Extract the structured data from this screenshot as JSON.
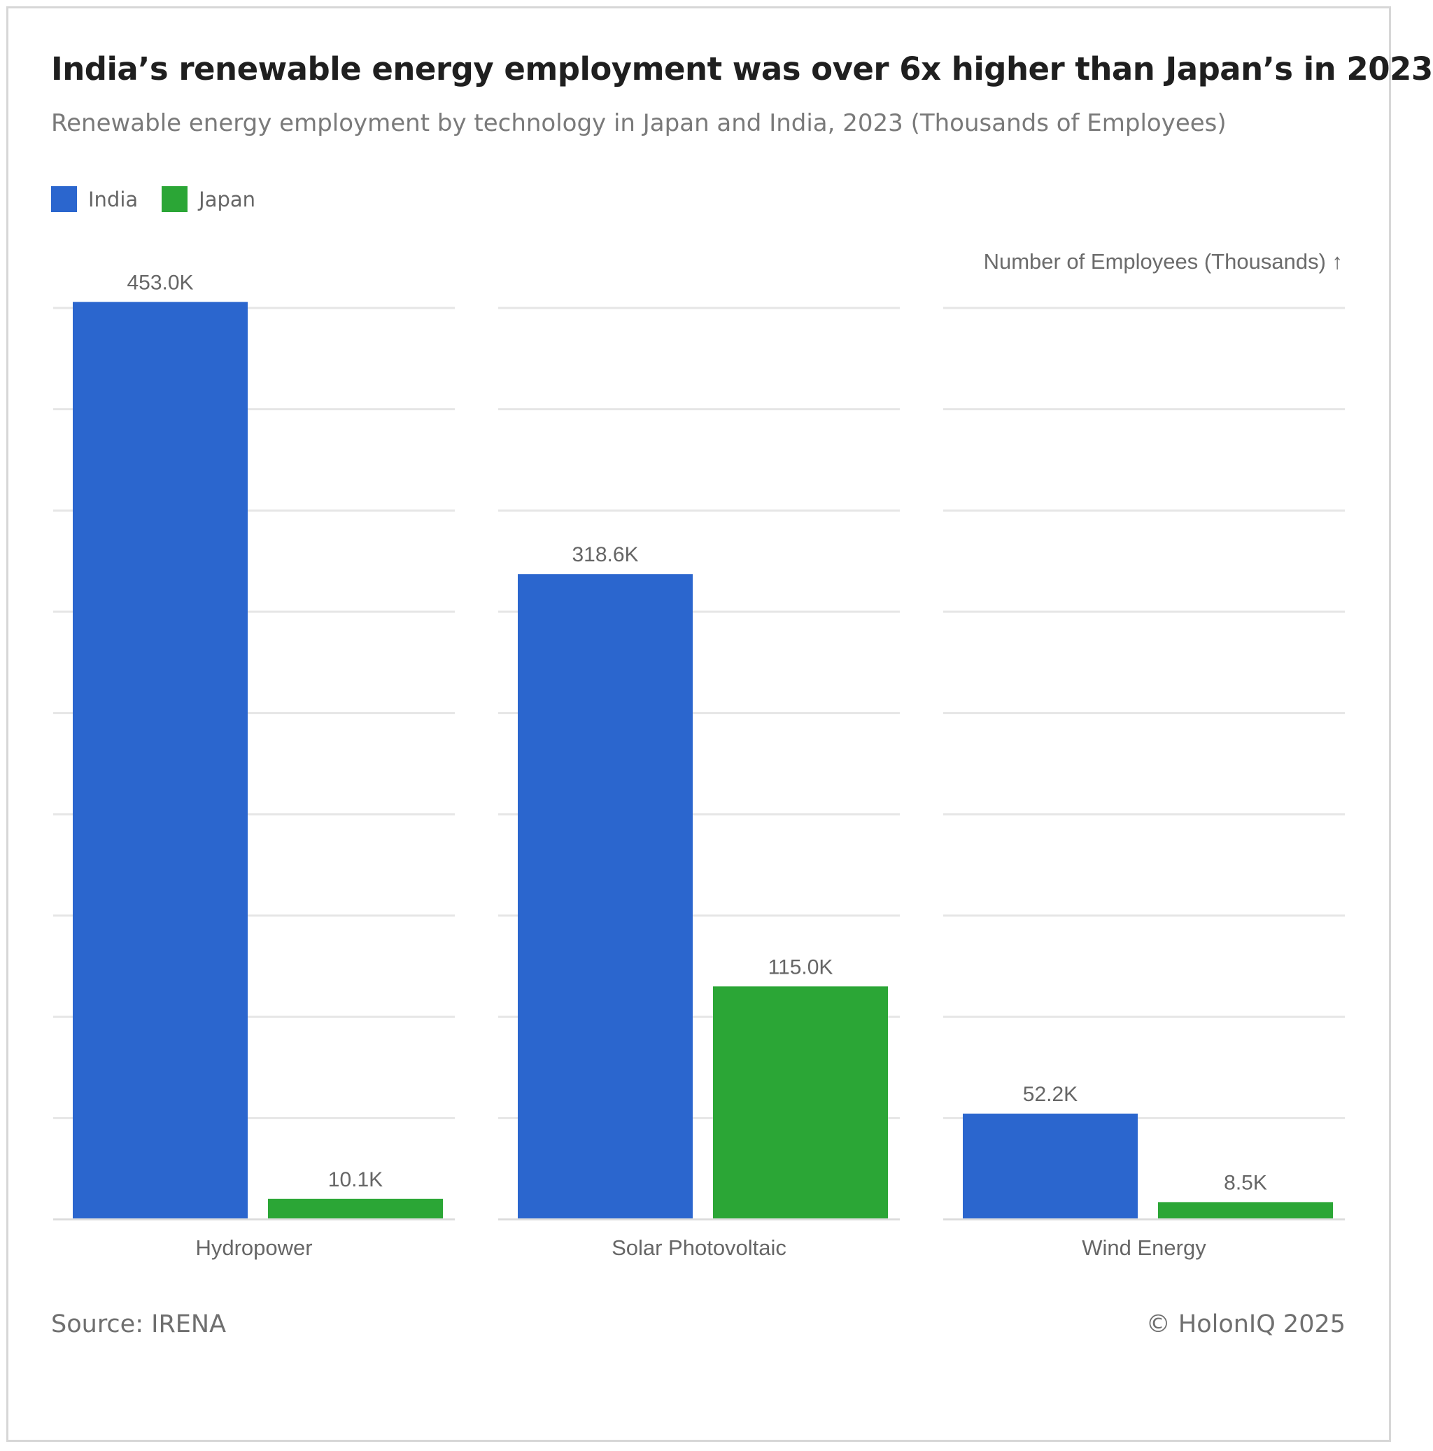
{
  "chart_data": {
    "type": "bar",
    "title": "India’s renewable energy employment was over 6x higher than Japan’s in 2023",
    "subtitle": "Renewable energy employment by technology in Japan and India, 2023 (Thousands of Employees)",
    "ylabel": "Number of Employees (Thousands) ↑",
    "categories": [
      "Hydropower",
      "Solar Photovoltaic",
      "Wind Energy"
    ],
    "series": [
      {
        "name": "India",
        "color": "#2b66ce",
        "values": [
          453.0,
          318.6,
          52.2
        ],
        "labels": [
          "453.0K",
          "318.6K",
          "52.2K"
        ]
      },
      {
        "name": "Japan",
        "color": "#2ba636",
        "values": [
          10.1,
          115.0,
          8.5
        ],
        "labels": [
          "10.1K",
          "115.0K",
          "8.5K"
        ]
      }
    ],
    "ylim": [
      0,
      450
    ],
    "grid": true,
    "legend": "top-left"
  },
  "footer": {
    "source": "Source: IRENA",
    "copyright": "© HolonIQ 2025"
  }
}
